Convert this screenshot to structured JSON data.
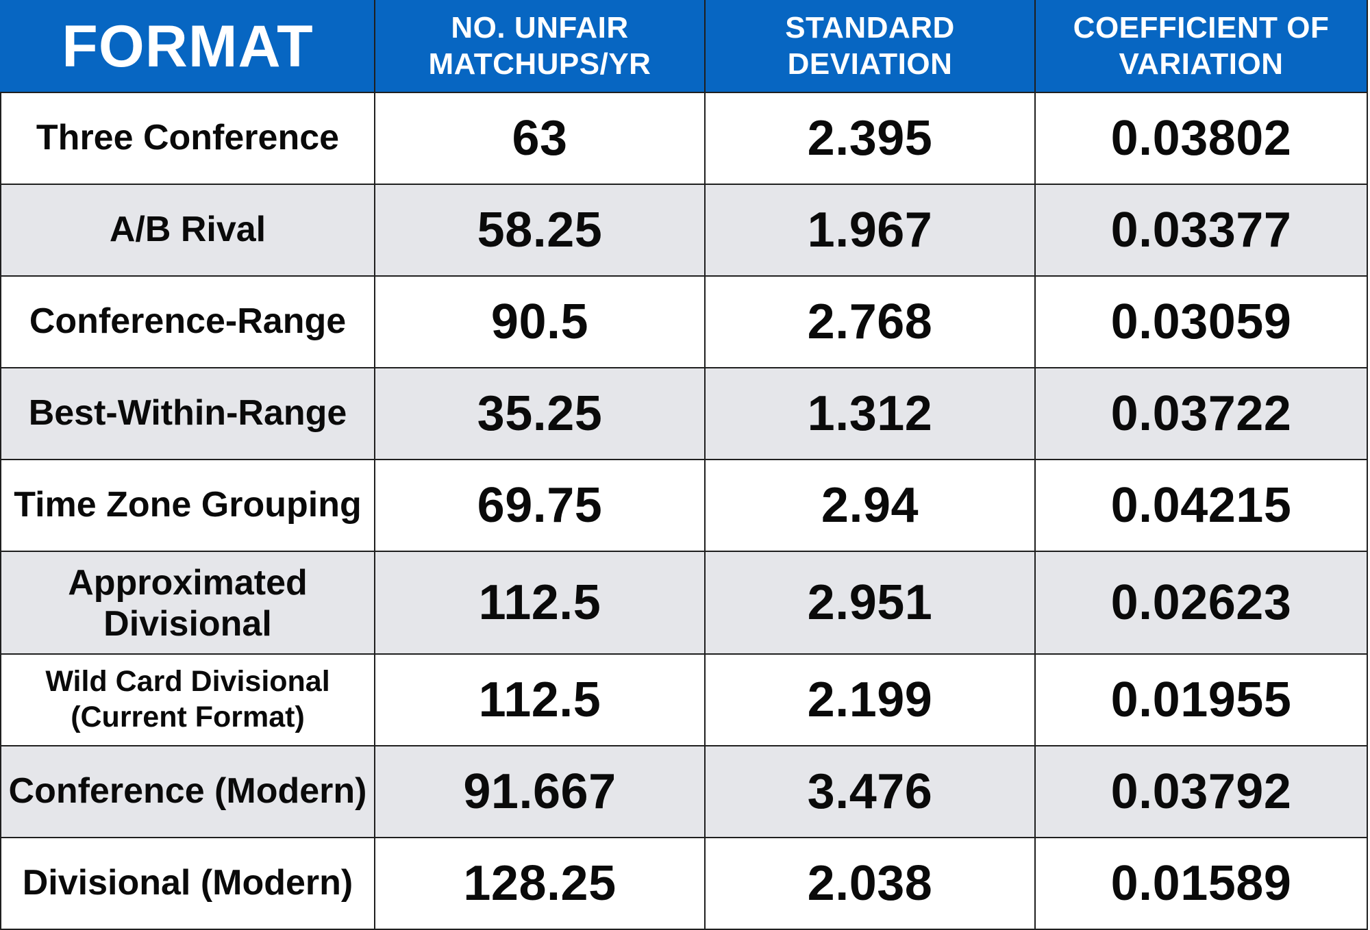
{
  "table": {
    "headers": {
      "format": "FORMAT",
      "unfair_line1": "NO. UNFAIR",
      "unfair_line2": "MATCHUPS/YR",
      "std_dev": "STANDARD DEVIATION",
      "cv_line1": "COEFFICIENT OF",
      "cv_line2": "VARIATION"
    },
    "rows": [
      {
        "format": "Three Conference",
        "unfair": "63",
        "std_dev": "2.395",
        "cv": "0.03802"
      },
      {
        "format": "A/B Rival",
        "unfair": "58.25",
        "std_dev": "1.967",
        "cv": "0.03377"
      },
      {
        "format": "Conference-Range",
        "unfair": "90.5",
        "std_dev": "2.768",
        "cv": "0.03059"
      },
      {
        "format": "Best-Within-Range",
        "unfair": "35.25",
        "std_dev": "1.312",
        "cv": "0.03722"
      },
      {
        "format": "Time Zone Grouping",
        "unfair": "69.75",
        "std_dev": "2.94",
        "cv": "0.04215"
      },
      {
        "format": "Approximated Divisional",
        "unfair": "112.5",
        "std_dev": "2.951",
        "cv": "0.02623"
      },
      {
        "format": "Wild Card Divisional (Current Format)",
        "unfair": "112.5",
        "std_dev": "2.199",
        "cv": "0.01955"
      },
      {
        "format": "Conference (Modern)",
        "unfair": "91.667",
        "std_dev": "3.476",
        "cv": "0.03792"
      },
      {
        "format": "Divisional (Modern)",
        "unfair": "128.25",
        "std_dev": "2.038",
        "cv": "0.01589"
      }
    ]
  },
  "colors": {
    "header_bg": "#0766c2",
    "header_text": "#ffffff",
    "row_alt_bg": "#e5e6ea",
    "row_bg": "#ffffff",
    "grid_line": "#1f1f1f"
  }
}
